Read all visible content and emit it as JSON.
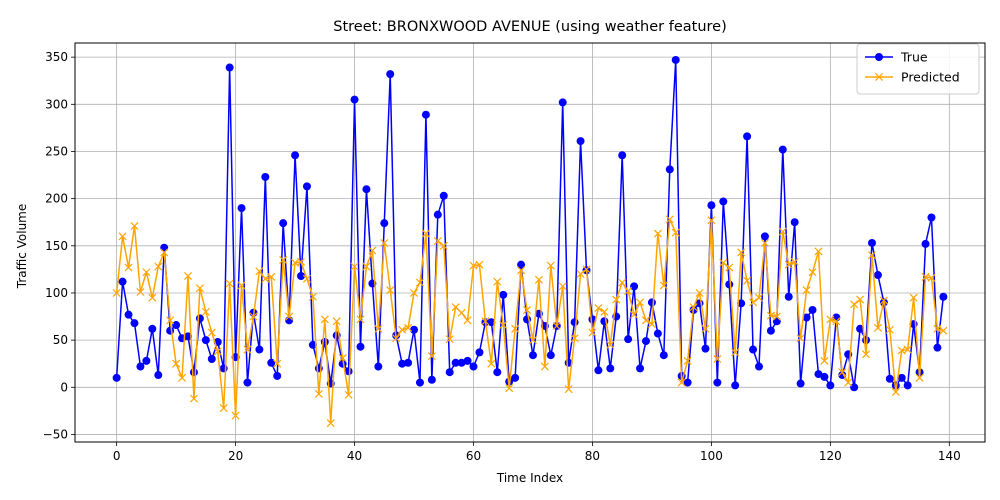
{
  "chart_data": {
    "type": "line",
    "title": "Street: BRONXWOOD AVENUE (using weather feature)",
    "xlabel": "Time Index",
    "ylabel": "Traffic Volume",
    "xlim": [
      -7,
      146
    ],
    "ylim": [
      -58,
      365
    ],
    "xticks": [
      0,
      20,
      40,
      60,
      80,
      100,
      120,
      140
    ],
    "yticks": [
      -50,
      0,
      50,
      100,
      150,
      200,
      250,
      300,
      350
    ],
    "grid": true,
    "legend_position": "upper right",
    "series": [
      {
        "name": "True",
        "color": "#0000ff",
        "marker": "circle",
        "values": [
          10,
          112,
          77,
          68,
          22,
          28,
          62,
          13,
          148,
          60,
          66,
          52,
          54,
          16,
          73,
          50,
          30,
          48,
          20,
          339,
          32,
          190,
          5,
          79,
          40,
          223,
          26,
          12,
          174,
          71,
          246,
          118,
          213,
          45,
          20,
          48,
          4,
          55,
          25,
          17,
          305,
          43,
          210,
          110,
          22,
          174,
          332,
          55,
          25,
          26,
          61,
          5,
          289,
          8,
          183,
          203,
          16,
          26,
          26,
          28,
          22,
          37,
          69,
          69,
          16,
          98,
          6,
          10,
          130,
          72,
          34,
          78,
          65,
          34,
          65,
          302,
          26,
          69,
          261,
          124,
          72,
          18,
          70,
          20,
          75,
          246,
          51,
          107,
          20,
          49,
          90,
          57,
          34,
          231,
          347,
          12,
          5,
          82,
          89,
          41,
          193,
          5,
          197,
          109,
          2,
          89,
          266,
          40,
          22,
          160,
          60,
          70,
          252,
          96,
          175,
          4,
          74,
          82,
          14,
          11,
          2,
          74,
          13,
          35,
          0,
          62,
          50,
          153,
          119,
          90,
          9,
          2,
          10,
          2,
          67,
          16,
          152,
          180,
          42,
          96
        ]
      },
      {
        "name": "Predicted",
        "color": "#ffa500",
        "marker": "x",
        "values": [
          100,
          160,
          127,
          171,
          101,
          122,
          95,
          128,
          143,
          71,
          25,
          10,
          118,
          -12,
          105,
          80,
          58,
          38,
          -22,
          110,
          -30,
          108,
          40,
          75,
          123,
          115,
          117,
          25,
          135,
          75,
          132,
          133,
          115,
          96,
          -7,
          72,
          -38,
          70,
          31,
          -8,
          128,
          72,
          128,
          145,
          62,
          153,
          103,
          52,
          61,
          63,
          100,
          111,
          163,
          33,
          155,
          150,
          51,
          85,
          79,
          71,
          129,
          130,
          70,
          25,
          112,
          66,
          -1,
          62,
          124,
          82,
          50,
          114,
          22,
          129,
          65,
          107,
          -2,
          52,
          120,
          125,
          58,
          84,
          80,
          45,
          93,
          111,
          102,
          77,
          90,
          71,
          67,
          163,
          108,
          178,
          164,
          5,
          28,
          85,
          100,
          62,
          177,
          30,
          132,
          127,
          37,
          143,
          113,
          90,
          95,
          153,
          76,
          75,
          165,
          130,
          133,
          52,
          103,
          122,
          144,
          28,
          72,
          70,
          16,
          5,
          88,
          93,
          35,
          140,
          63,
          92,
          61,
          -5,
          39,
          40,
          95,
          10,
          117,
          116,
          62,
          60
        ]
      }
    ]
  }
}
